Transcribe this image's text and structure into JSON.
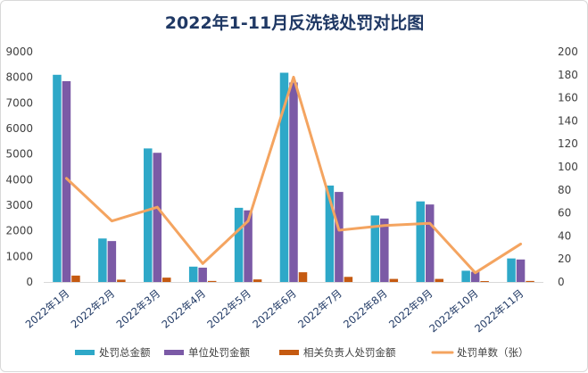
{
  "chart_data": {
    "type": "bar",
    "title": "2022年1-11月反洗钱处罚对比图",
    "categories": [
      "2022年1月",
      "2022年2月",
      "2022年3月",
      "2022年4月",
      "2022年5月",
      "2022年6月",
      "2022年7月",
      "2022年8月",
      "2022年9月",
      "2022年10月",
      "2022年11月"
    ],
    "y_left_ticks": [
      "0",
      "1000",
      "2000",
      "3000",
      "4000",
      "5000",
      "6000",
      "7000",
      "8000",
      "9000"
    ],
    "y_right_ticks": [
      "0",
      "20",
      "40",
      "60",
      "80",
      "100",
      "120",
      "140",
      "160",
      "180",
      "200"
    ],
    "ylim_left": [
      0,
      9000
    ],
    "ylim_right": [
      0,
      200
    ],
    "grid": false,
    "legend_position": "bottom",
    "series": [
      {
        "name": "处罚总金额",
        "type": "bar",
        "axis": "left",
        "color": "#2ea8c8",
        "values": [
          8100,
          1700,
          5220,
          600,
          2900,
          8180,
          3770,
          2600,
          3150,
          440,
          920
        ]
      },
      {
        "name": "单位处罚金额",
        "type": "bar",
        "axis": "left",
        "color": "#7b5aa6",
        "values": [
          7850,
          1600,
          5050,
          560,
          2800,
          7800,
          3520,
          2480,
          3030,
          400,
          880
        ]
      },
      {
        "name": "相关负责人处罚金额",
        "type": "bar",
        "axis": "left",
        "color": "#c55a11",
        "values": [
          250,
          90,
          170,
          40,
          100,
          380,
          200,
          120,
          120,
          35,
          40
        ]
      },
      {
        "name": "处罚单数（张）",
        "type": "line",
        "axis": "right",
        "color": "#f4a460",
        "values": [
          90,
          53,
          65,
          16,
          53,
          178,
          45,
          49,
          51,
          8,
          33
        ]
      }
    ]
  }
}
